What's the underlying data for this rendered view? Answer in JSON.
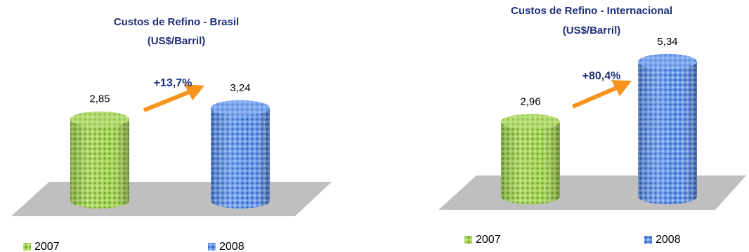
{
  "chart_data": [
    {
      "type": "bar",
      "title_line1": "Custos de Refino - Brasil",
      "title_line2": "(US$/Barril)",
      "categories": [
        "2007",
        "2008"
      ],
      "values": [
        2.85,
        3.24
      ],
      "value_labels": [
        "2,85",
        "3,24"
      ],
      "change_label": "+13,7%",
      "ylim": [
        0,
        5.34
      ],
      "legend_position": "bottom",
      "grid": false
    },
    {
      "type": "bar",
      "title_line1": "Custos de Refino - Internacional",
      "title_line2": "(US$/Barril)",
      "categories": [
        "2007",
        "2008"
      ],
      "values": [
        2.96,
        5.34
      ],
      "value_labels": [
        "2,96",
        "5,34"
      ],
      "change_label": "+80,4%",
      "ylim": [
        0,
        5.34
      ],
      "legend_position": "bottom",
      "grid": false
    }
  ],
  "legend": [
    {
      "label": "2007",
      "color": "#8dc63f",
      "dot_color": "#5f9e1c"
    },
    {
      "label": "2008",
      "color": "#4f86e0",
      "dot_color": "#2a55b8"
    }
  ],
  "colors": {
    "floor": "#bfbfbf",
    "arrow": "#f7941d",
    "title": "#1f2f7a"
  }
}
